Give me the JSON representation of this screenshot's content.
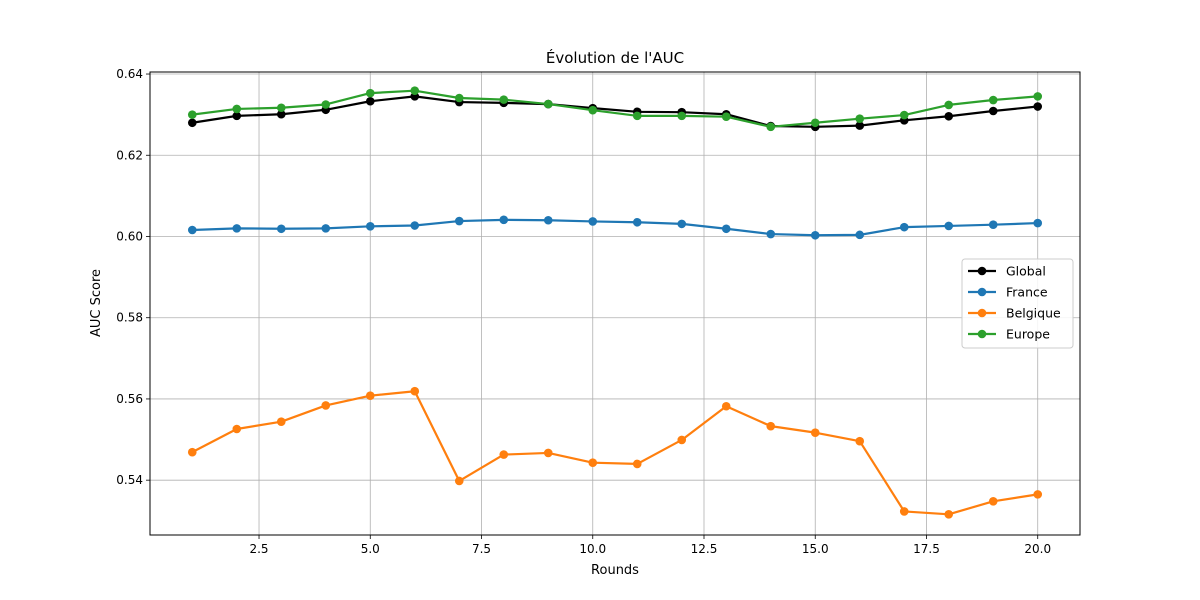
{
  "chart_data": {
    "type": "line",
    "title": "Évolution de l'AUC",
    "xlabel": "Rounds",
    "ylabel": "AUC Score",
    "x": [
      1,
      2,
      3,
      4,
      5,
      6,
      7,
      8,
      9,
      10,
      11,
      12,
      13,
      14,
      15,
      16,
      17,
      18,
      19,
      20
    ],
    "xlim": [
      0.05,
      20.95
    ],
    "ylim": [
      0.5265,
      0.6405
    ],
    "xticks": [
      2.5,
      5.0,
      7.5,
      10.0,
      12.5,
      15.0,
      17.5,
      20.0
    ],
    "xtick_labels": [
      "2.5",
      "5.0",
      "7.5",
      "10.0",
      "12.5",
      "15.0",
      "17.5",
      "20.0"
    ],
    "yticks": [
      0.54,
      0.56,
      0.58,
      0.6,
      0.62,
      0.64
    ],
    "ytick_labels": [
      "0.54",
      "0.56",
      "0.58",
      "0.60",
      "0.62",
      "0.64"
    ],
    "grid": true,
    "legend_position": "center-right",
    "series": [
      {
        "name": "Global",
        "color": "#000000",
        "values": [
          0.628,
          0.6297,
          0.6301,
          0.6312,
          0.6333,
          0.6345,
          0.6331,
          0.6329,
          0.6326,
          0.6316,
          0.6307,
          0.6306,
          0.6301,
          0.6272,
          0.627,
          0.6273,
          0.6286,
          0.6296,
          0.6309,
          0.632
        ]
      },
      {
        "name": "France",
        "color": "#1f77b4",
        "values": [
          0.6016,
          0.602,
          0.6019,
          0.602,
          0.6025,
          0.6027,
          0.6038,
          0.6041,
          0.604,
          0.6037,
          0.6035,
          0.6031,
          0.6019,
          0.6006,
          0.6003,
          0.6004,
          0.6023,
          0.6026,
          0.6029,
          0.6033
        ]
      },
      {
        "name": "Belgique",
        "color": "#ff7f0e",
        "values": [
          0.5469,
          0.5526,
          0.5544,
          0.5584,
          0.5608,
          0.5619,
          0.5398,
          0.5463,
          0.5467,
          0.5443,
          0.544,
          0.5499,
          0.5582,
          0.5533,
          0.5517,
          0.5496,
          0.5323,
          0.5316,
          0.5348,
          0.5365
        ]
      },
      {
        "name": "Europe",
        "color": "#2ca02c",
        "values": [
          0.63,
          0.6314,
          0.6317,
          0.6325,
          0.6353,
          0.6359,
          0.6341,
          0.6337,
          0.6326,
          0.6311,
          0.6297,
          0.6297,
          0.6295,
          0.627,
          0.628,
          0.629,
          0.6299,
          0.6324,
          0.6336,
          0.6345
        ]
      }
    ]
  }
}
